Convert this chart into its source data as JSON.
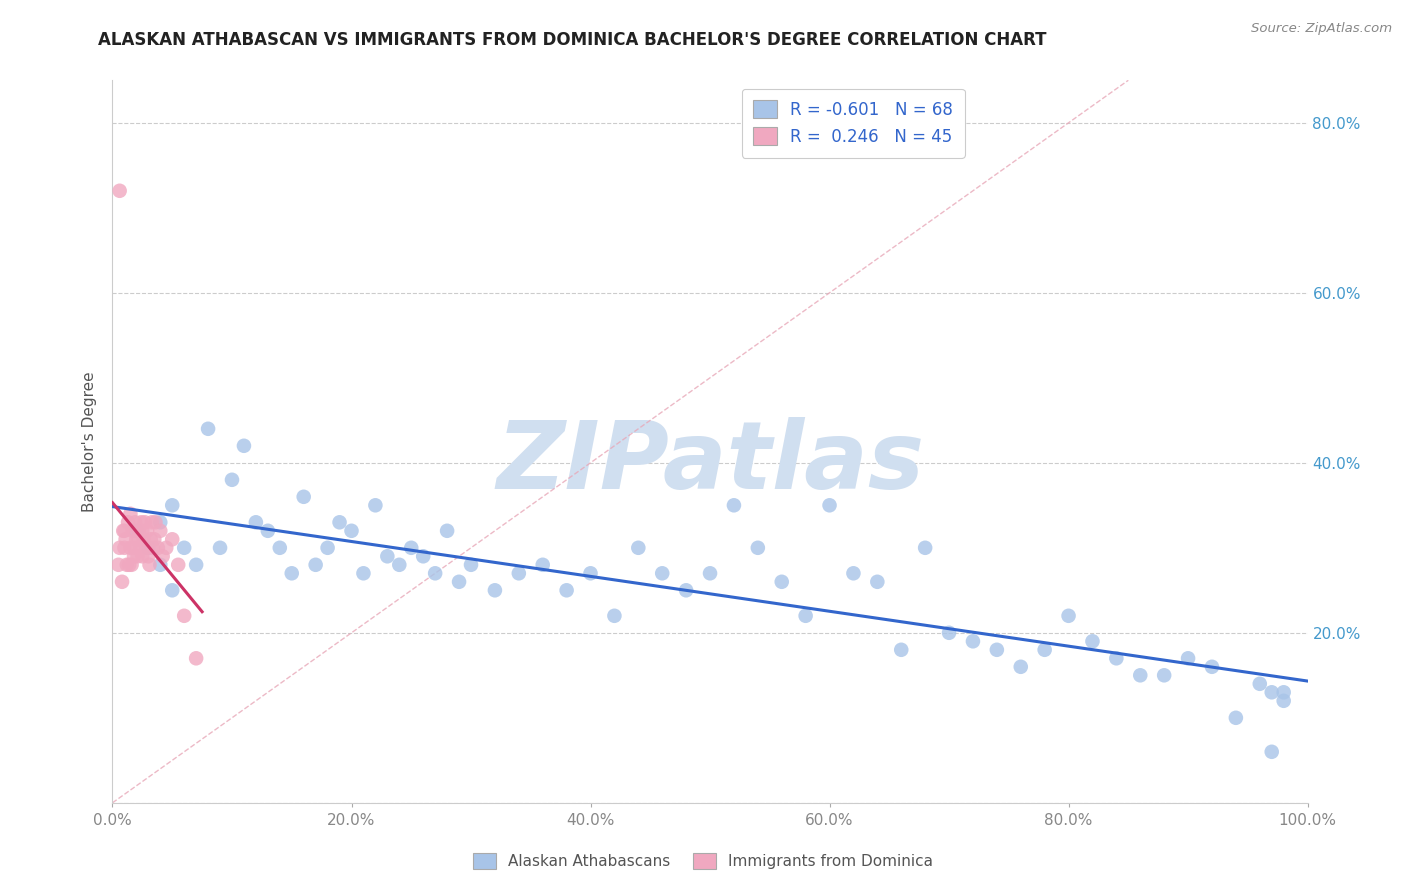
{
  "title": "ALASKAN ATHABASCAN VS IMMIGRANTS FROM DOMINICA BACHELOR'S DEGREE CORRELATION CHART",
  "source": "Source: ZipAtlas.com",
  "ylabel": "Bachelor's Degree",
  "blue_R": -0.601,
  "blue_N": 68,
  "pink_R": 0.246,
  "pink_N": 45,
  "blue_label": "Alaskan Athabascans",
  "pink_label": "Immigrants from Dominica",
  "blue_color": "#a8c4e8",
  "pink_color": "#f0a8c0",
  "blue_trend_color": "#3366cc",
  "pink_trend_color": "#cc3366",
  "diag_color": "#e8a8b8",
  "legend_R_color": "#3366cc",
  "legend_N_color": "#3366cc",
  "watermark_text": "ZIPatlas",
  "watermark_color": "#d0dff0",
  "xlim": [
    0.0,
    1.0
  ],
  "ylim": [
    0.0,
    0.85
  ],
  "x_ticks": [
    0.0,
    0.2,
    0.4,
    0.6,
    0.8,
    1.0
  ],
  "x_tick_labels": [
    "0.0%",
    "20.0%",
    "40.0%",
    "60.0%",
    "80.0%",
    "100.0%"
  ],
  "y_ticks": [
    0.0,
    0.2,
    0.4,
    0.6,
    0.8
  ],
  "y_tick_labels": [
    "",
    "20.0%",
    "40.0%",
    "60.0%",
    "80.0%"
  ],
  "blue_x": [
    0.02,
    0.03,
    0.04,
    0.04,
    0.05,
    0.05,
    0.06,
    0.07,
    0.08,
    0.09,
    0.1,
    0.11,
    0.12,
    0.13,
    0.14,
    0.15,
    0.16,
    0.17,
    0.18,
    0.19,
    0.2,
    0.21,
    0.22,
    0.23,
    0.24,
    0.25,
    0.26,
    0.27,
    0.28,
    0.29,
    0.3,
    0.32,
    0.34,
    0.36,
    0.38,
    0.4,
    0.42,
    0.44,
    0.46,
    0.48,
    0.5,
    0.52,
    0.54,
    0.56,
    0.58,
    0.6,
    0.62,
    0.64,
    0.66,
    0.68,
    0.7,
    0.72,
    0.74,
    0.76,
    0.78,
    0.8,
    0.82,
    0.84,
    0.86,
    0.88,
    0.9,
    0.92,
    0.94,
    0.96,
    0.97,
    0.97,
    0.98,
    0.98
  ],
  "blue_y": [
    0.32,
    0.3,
    0.33,
    0.28,
    0.35,
    0.25,
    0.3,
    0.28,
    0.44,
    0.3,
    0.38,
    0.42,
    0.33,
    0.32,
    0.3,
    0.27,
    0.36,
    0.28,
    0.3,
    0.33,
    0.32,
    0.27,
    0.35,
    0.29,
    0.28,
    0.3,
    0.29,
    0.27,
    0.32,
    0.26,
    0.28,
    0.25,
    0.27,
    0.28,
    0.25,
    0.27,
    0.22,
    0.3,
    0.27,
    0.25,
    0.27,
    0.35,
    0.3,
    0.26,
    0.22,
    0.35,
    0.27,
    0.26,
    0.18,
    0.3,
    0.2,
    0.19,
    0.18,
    0.16,
    0.18,
    0.22,
    0.19,
    0.17,
    0.15,
    0.15,
    0.17,
    0.16,
    0.1,
    0.14,
    0.13,
    0.06,
    0.12,
    0.13
  ],
  "pink_x": [
    0.005,
    0.006,
    0.008,
    0.009,
    0.01,
    0.01,
    0.011,
    0.012,
    0.013,
    0.014,
    0.015,
    0.015,
    0.016,
    0.017,
    0.018,
    0.018,
    0.019,
    0.02,
    0.021,
    0.022,
    0.022,
    0.023,
    0.024,
    0.025,
    0.025,
    0.026,
    0.027,
    0.028,
    0.029,
    0.03,
    0.031,
    0.032,
    0.033,
    0.034,
    0.035,
    0.036,
    0.038,
    0.04,
    0.042,
    0.045,
    0.05,
    0.055,
    0.06,
    0.07,
    0.006
  ],
  "pink_y": [
    0.28,
    0.3,
    0.26,
    0.32,
    0.3,
    0.32,
    0.31,
    0.28,
    0.33,
    0.28,
    0.3,
    0.34,
    0.28,
    0.32,
    0.3,
    0.29,
    0.33,
    0.31,
    0.29,
    0.32,
    0.31,
    0.3,
    0.33,
    0.29,
    0.32,
    0.31,
    0.33,
    0.3,
    0.32,
    0.29,
    0.28,
    0.31,
    0.33,
    0.3,
    0.31,
    0.33,
    0.3,
    0.32,
    0.29,
    0.3,
    0.31,
    0.28,
    0.22,
    0.17,
    0.72
  ],
  "tick_color": "#888888",
  "grid_color": "#cccccc",
  "bg_color": "#ffffff"
}
